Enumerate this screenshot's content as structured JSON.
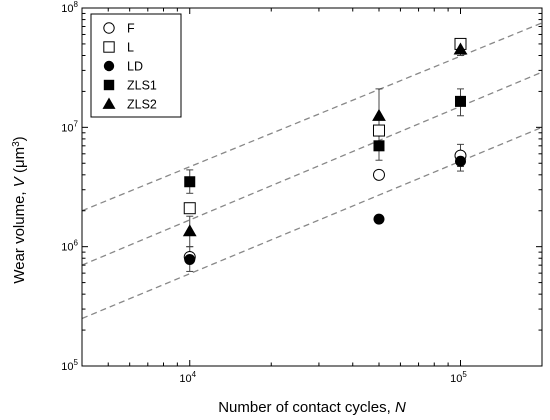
{
  "chart_data": {
    "type": "scatter",
    "xlabel": "Number of contact cycles, ",
    "xlabel_var": "N",
    "ylabel_parts": {
      "pre": "Wear volume, ",
      "var": "V",
      "mid": " (μm",
      "sup": "3",
      "post": ")"
    },
    "x_scale": "log",
    "y_scale": "log",
    "xlim": [
      4000,
      200000
    ],
    "ylim": [
      100000,
      100000000
    ],
    "grid": false,
    "legend_position": "top-left",
    "x_tick_labels": [
      {
        "value": 10000,
        "base": "10",
        "exp": "4"
      },
      {
        "value": 100000,
        "base": "10",
        "exp": "5"
      }
    ],
    "y_tick_labels": [
      {
        "value": 100000,
        "base": "10",
        "exp": "5"
      },
      {
        "value": 1000000,
        "base": "10",
        "exp": "6"
      },
      {
        "value": 10000000,
        "base": "10",
        "exp": "7"
      },
      {
        "value": 100000000,
        "base": "10",
        "exp": "8"
      }
    ],
    "series": [
      {
        "name": "F",
        "marker": "circle-open",
        "points": [
          {
            "x": 10000,
            "y": 820000
          },
          {
            "x": 50000,
            "y": 4000000
          },
          {
            "x": 100000,
            "y": 5800000,
            "err": [
              4700000,
              7200000
            ]
          }
        ]
      },
      {
        "name": "L",
        "marker": "square-open",
        "points": [
          {
            "x": 10000,
            "y": 2100000
          },
          {
            "x": 50000,
            "y": 9400000
          },
          {
            "x": 100000,
            "y": 50000000
          }
        ]
      },
      {
        "name": "LD",
        "marker": "circle-filled",
        "points": [
          {
            "x": 10000,
            "y": 780000,
            "err": [
              620000,
              1000000
            ]
          },
          {
            "x": 50000,
            "y": 1700000
          },
          {
            "x": 100000,
            "y": 5200000,
            "err": [
              4300000,
              6200000
            ]
          }
        ]
      },
      {
        "name": "ZLS1",
        "marker": "square-filled",
        "points": [
          {
            "x": 10000,
            "y": 3500000,
            "err": [
              2800000,
              4400000
            ]
          },
          {
            "x": 50000,
            "y": 7000000,
            "err": [
              5300000,
              9200000
            ]
          },
          {
            "x": 100000,
            "y": 16500000,
            "err": [
              12500000,
              21000000
            ]
          }
        ]
      },
      {
        "name": "ZLS2",
        "marker": "triangle-filled",
        "points": [
          {
            "x": 10000,
            "y": 1350000,
            "err": [
              1000000,
              1800000
            ]
          },
          {
            "x": 50000,
            "y": 12500000,
            "err": [
              7000000,
              21000000
            ]
          },
          {
            "x": 100000,
            "y": 45000000,
            "err": [
              40000000,
              50000000
            ]
          }
        ]
      }
    ],
    "trend_lines": [
      {
        "style": "dashed",
        "x": [
          4000,
          200000
        ],
        "y": [
          2000000,
          75000000
        ]
      },
      {
        "style": "dashed",
        "x": [
          4000,
          200000
        ],
        "y": [
          700000,
          29000000
        ]
      },
      {
        "style": "dashed",
        "x": [
          4000,
          200000
        ],
        "y": [
          250000,
          10000000
        ]
      }
    ],
    "colors": {
      "markers": "#000000",
      "trend_lines": "#888888",
      "axes": "#000000"
    }
  }
}
